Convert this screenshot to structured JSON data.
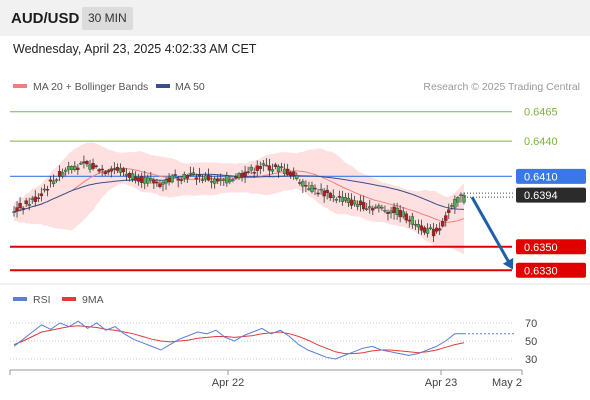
{
  "header": {
    "symbol": "AUD/USD",
    "timeframe": "30 MIN",
    "datetime": "Wednesday, April 23, 2025 4:02:33 AM CET"
  },
  "legend": {
    "ma20_label": "MA 20 + Bollinger Bands",
    "ma50_label": "MA 50",
    "copyright": "Research © 2025 Trading Central"
  },
  "rsi_legend": {
    "rsi_label": "RSI",
    "ma_label": "9MA"
  },
  "colors": {
    "bull": "#4caf50",
    "bear": "#b71c1c",
    "ma20": "#f08080",
    "ma50": "#37508a",
    "band": "#ffd6d6",
    "target": "#7cb342",
    "pivot": "#3b78e7",
    "support": "#e00000",
    "arrow": "#1f5fa8",
    "rsi": "#5a7fd6",
    "rsi_ma": "#e53935"
  },
  "chart_data": [
    {
      "type": "candlestick",
      "title": "AUD/USD 30 MIN",
      "ylim": [
        0.632,
        0.6475
      ],
      "x_ticks": [
        "Apr 22",
        "Apr 23",
        "May 2"
      ],
      "close_path": [
        0.6381,
        0.6384,
        0.6386,
        0.6389,
        0.6393,
        0.6399,
        0.6404,
        0.6409,
        0.6413,
        0.6418,
        0.6419,
        0.6418,
        0.642,
        0.6418,
        0.6417,
        0.6415,
        0.6417,
        0.6416,
        0.6414,
        0.6411,
        0.641,
        0.6408,
        0.6406,
        0.6405,
        0.6404,
        0.6406,
        0.6408,
        0.641,
        0.6411,
        0.6411,
        0.641,
        0.6409,
        0.6408,
        0.6406,
        0.6405,
        0.6407,
        0.6409,
        0.6411,
        0.6413,
        0.6415,
        0.6417,
        0.6418,
        0.6418,
        0.6417,
        0.6416,
        0.6414,
        0.6411,
        0.6407,
        0.6403,
        0.64,
        0.6398,
        0.6396,
        0.6394,
        0.6392,
        0.6391,
        0.6389,
        0.6387,
        0.6386,
        0.6385,
        0.6384,
        0.6383,
        0.6382,
        0.6381,
        0.638,
        0.6377,
        0.6374,
        0.6371,
        0.6367,
        0.6364,
        0.6362,
        0.6366,
        0.6374,
        0.6383,
        0.6391,
        0.6394
      ],
      "annotations": {
        "target_2": {
          "value": 0.6465,
          "label": "0.6465"
        },
        "target_1": {
          "value": 0.644,
          "label": "0.6440"
        },
        "pivot": {
          "value": 0.641,
          "label": "0.6410"
        },
        "last_price": {
          "value": 0.6394,
          "label": "0.6394"
        },
        "support_1": {
          "value": 0.635,
          "label": "0.6350"
        },
        "support_2": {
          "value": 0.633,
          "label": "0.6330"
        }
      },
      "series": [
        {
          "name": "MA 20 + Bollinger Bands"
        },
        {
          "name": "MA 50"
        }
      ]
    },
    {
      "type": "line",
      "title": "RSI",
      "ylim": [
        20,
        80
      ],
      "y_ticks": [
        70,
        50,
        30
      ],
      "series": [
        {
          "name": "RSI",
          "values": [
            44,
            52,
            60,
            68,
            63,
            70,
            66,
            72,
            64,
            70,
            62,
            66,
            58,
            52,
            48,
            44,
            40,
            46,
            52,
            56,
            60,
            58,
            62,
            54,
            50,
            56,
            60,
            64,
            58,
            62,
            55,
            46,
            40,
            36,
            32,
            30,
            34,
            38,
            42,
            44,
            40,
            38,
            36,
            34,
            36,
            40,
            44,
            50,
            58,
            58
          ]
        },
        {
          "name": "9MA",
          "values": [
            46,
            50,
            55,
            60,
            62,
            64,
            66,
            67,
            66,
            65,
            63,
            62,
            60,
            58,
            55,
            52,
            50,
            49,
            50,
            51,
            53,
            54,
            55,
            55,
            54,
            55,
            56,
            58,
            59,
            60,
            58,
            55,
            51,
            46,
            42,
            38,
            36,
            36,
            37,
            39,
            40,
            40,
            39,
            38,
            37,
            38,
            40,
            43,
            46,
            48
          ]
        }
      ]
    }
  ]
}
